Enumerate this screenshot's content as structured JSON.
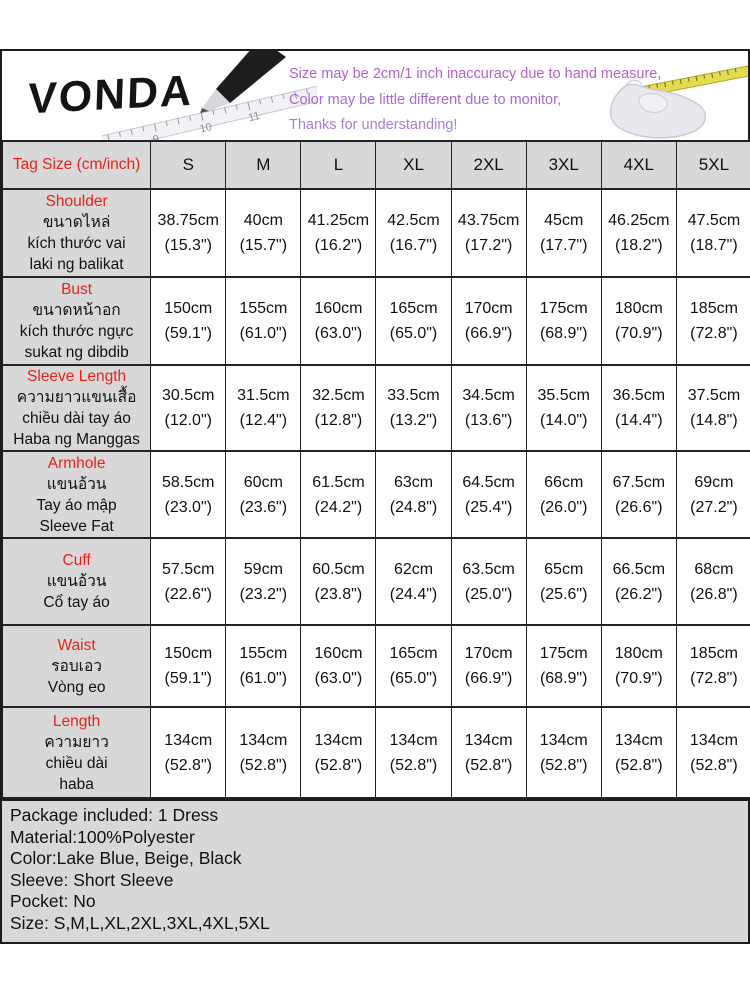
{
  "brand": {
    "name": "VONDA"
  },
  "header": {
    "notes": [
      {
        "text": "Size may be 2cm/1 inch inaccuracy due to hand measure,",
        "color": "#b55fd0"
      },
      {
        "text": "Color may be little different due to monitor,",
        "color": "#a768d8"
      },
      {
        "text": "Thanks for understanding!",
        "color": "#ab7cdb"
      }
    ],
    "icons": [
      {
        "name": "pencil-ruler-icon"
      },
      {
        "name": "hand-measuring-tape-icon"
      }
    ]
  },
  "table": {
    "corner_label": "Tag Size (cm/inch)",
    "size_columns": [
      "S",
      "M",
      "L",
      "XL",
      "2XL",
      "3XL",
      "4XL",
      "5XL"
    ],
    "rows": [
      {
        "key": "shoulder",
        "label_en": "Shoulder",
        "label_lines": [
          "ขนาดไหล่",
          "kích thước vai",
          "laki ng balikat"
        ],
        "values": [
          [
            "38.75cm",
            "(15.3\")"
          ],
          [
            "40cm",
            "(15.7\")"
          ],
          [
            "41.25cm",
            "(16.2\")"
          ],
          [
            "42.5cm",
            "(16.7\")"
          ],
          [
            "43.75cm",
            "(17.2\")"
          ],
          [
            "45cm",
            "(17.7\")"
          ],
          [
            "46.25cm",
            "(18.2\")"
          ],
          [
            "47.5cm",
            "(18.7\")"
          ]
        ]
      },
      {
        "key": "bust",
        "label_en": "Bust",
        "label_lines": [
          "ขนาดหน้าอก",
          "kích thước ngực",
          "sukat ng dibdib"
        ],
        "values": [
          [
            "150cm",
            "(59.1\")"
          ],
          [
            "155cm",
            "(61.0\")"
          ],
          [
            "160cm",
            "(63.0\")"
          ],
          [
            "165cm",
            "(65.0\")"
          ],
          [
            "170cm",
            "(66.9\")"
          ],
          [
            "175cm",
            "(68.9\")"
          ],
          [
            "180cm",
            "(70.9\")"
          ],
          [
            "185cm",
            "(72.8\")"
          ]
        ]
      },
      {
        "key": "sleeve-length",
        "label_en": "Sleeve Length",
        "label_lines": [
          "ความยาวแขนเสื้อ",
          "chiều dài tay áo",
          "Haba ng Manggas"
        ],
        "values": [
          [
            "30.5cm",
            "(12.0\")"
          ],
          [
            "31.5cm",
            "(12.4\")"
          ],
          [
            "32.5cm",
            "(12.8\")"
          ],
          [
            "33.5cm",
            "(13.2\")"
          ],
          [
            "34.5cm",
            "(13.6\")"
          ],
          [
            "35.5cm",
            "(14.0\")"
          ],
          [
            "36.5cm",
            "(14.4\")"
          ],
          [
            "37.5cm",
            "(14.8\")"
          ]
        ]
      },
      {
        "key": "armhole",
        "label_en": "Armhole",
        "label_lines": [
          "แขนอ้วน",
          "Tay áo mập",
          "Sleeve Fat"
        ],
        "values": [
          [
            "58.5cm",
            "(23.0\")"
          ],
          [
            "60cm",
            "(23.6\")"
          ],
          [
            "61.5cm",
            "(24.2\")"
          ],
          [
            "63cm",
            "(24.8\")"
          ],
          [
            "64.5cm",
            "(25.4\")"
          ],
          [
            "66cm",
            "(26.0\")"
          ],
          [
            "67.5cm",
            "(26.6\")"
          ],
          [
            "69cm",
            "(27.2\")"
          ]
        ]
      },
      {
        "key": "cuff",
        "label_en": "Cuff",
        "label_lines": [
          "แขนอ้วน",
          "Cổ tay áo"
        ],
        "values": [
          [
            "57.5cm",
            "(22.6\")"
          ],
          [
            "59cm",
            "(23.2\")"
          ],
          [
            "60.5cm",
            "(23.8\")"
          ],
          [
            "62cm",
            "(24.4\")"
          ],
          [
            "63.5cm",
            "(25.0\")"
          ],
          [
            "65cm",
            "(25.6\")"
          ],
          [
            "66.5cm",
            "(26.2\")"
          ],
          [
            "68cm",
            "(26.8\")"
          ]
        ]
      },
      {
        "key": "waist",
        "label_en": "Waist",
        "label_lines": [
          "รอบเอว",
          "Vòng eo"
        ],
        "values": [
          [
            "150cm",
            "(59.1\")"
          ],
          [
            "155cm",
            "(61.0\")"
          ],
          [
            "160cm",
            "(63.0\")"
          ],
          [
            "165cm",
            "(65.0\")"
          ],
          [
            "170cm",
            "(66.9\")"
          ],
          [
            "175cm",
            "(68.9\")"
          ],
          [
            "180cm",
            "(70.9\")"
          ],
          [
            "185cm",
            "(72.8\")"
          ]
        ]
      },
      {
        "key": "length",
        "label_en": "Length",
        "label_lines": [
          "ความยาว",
          "chiều dài",
          "haba"
        ],
        "values": [
          [
            "134cm",
            "(52.8\")"
          ],
          [
            "134cm",
            "(52.8\")"
          ],
          [
            "134cm",
            "(52.8\")"
          ],
          [
            "134cm",
            "(52.8\")"
          ],
          [
            "134cm",
            "(52.8\")"
          ],
          [
            "134cm",
            "(52.8\")"
          ],
          [
            "134cm",
            "(52.8\")"
          ],
          [
            "134cm",
            "(52.8\")"
          ]
        ]
      }
    ]
  },
  "footer": {
    "lines": [
      "Package included: 1 Dress",
      "Material:100%Polyester",
      "Color:Lake Blue, Beige, Black",
      "Sleeve: Short Sleeve",
      "Pocket: No",
      "Size: S,M,L,XL,2XL,3XL,4XL,5XL"
    ]
  },
  "colors": {
    "accent_red": "#e8221a",
    "cell_gray": "#d8d8d8",
    "border_dark": "#1c1c1c",
    "tape_yellow": "#e4dc4e"
  }
}
